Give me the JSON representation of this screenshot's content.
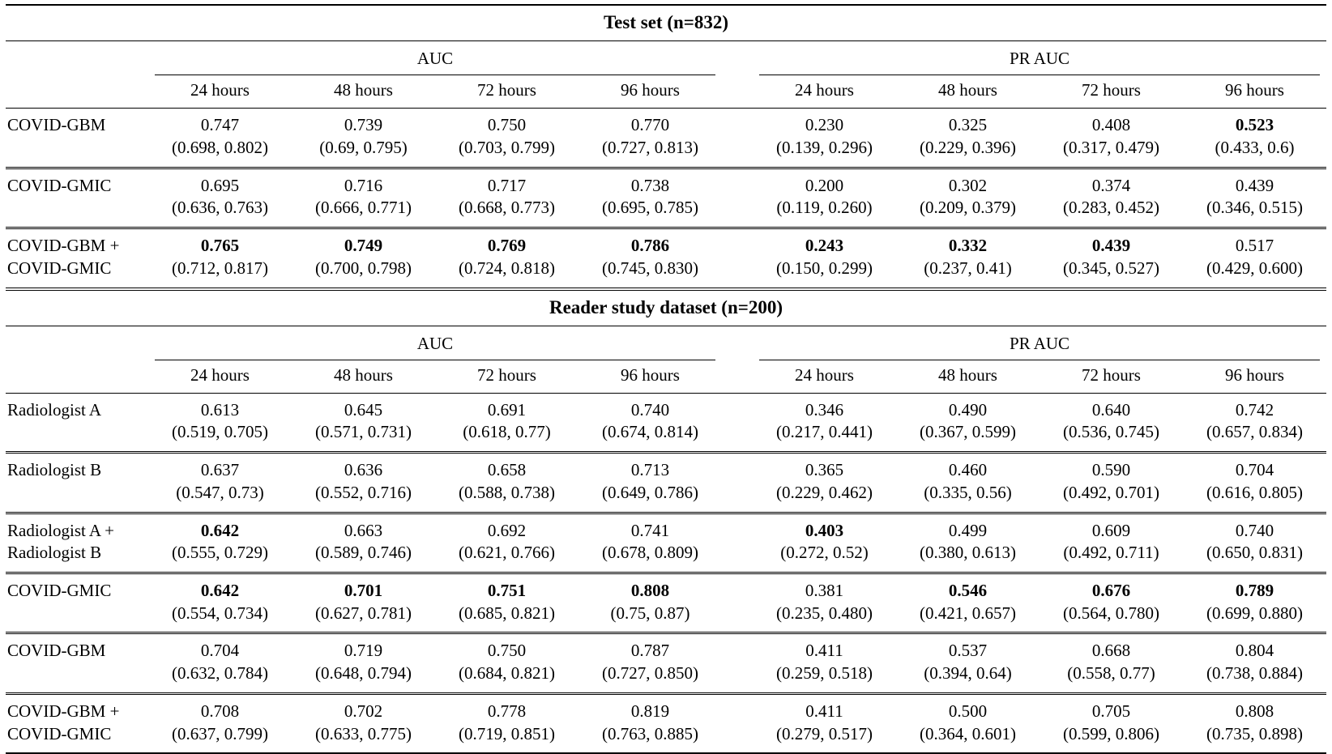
{
  "page": {
    "background": "#ffffff",
    "text_color": "#000000",
    "rule_color": "#000000"
  },
  "table": {
    "sections": [
      {
        "title": "Test set (n=832)",
        "column_groups": [
          {
            "label": "AUC",
            "columns": [
              "24 hours",
              "48 hours",
              "72 hours",
              "96 hours"
            ]
          },
          {
            "label": "PR AUC",
            "columns": [
              "24 hours",
              "48 hours",
              "72 hours",
              "96 hours"
            ]
          }
        ],
        "rows": [
          {
            "label": "COVID-GBM",
            "cells": [
              {
                "value": "0.747",
                "ci": "(0.698, 0.802)",
                "bold": false
              },
              {
                "value": "0.739",
                "ci": "(0.69, 0.795)",
                "bold": false
              },
              {
                "value": "0.750",
                "ci": "(0.703, 0.799)",
                "bold": false
              },
              {
                "value": "0.770",
                "ci": "(0.727, 0.813)",
                "bold": false
              },
              {
                "value": "0.230",
                "ci": "(0.139, 0.296)",
                "bold": false
              },
              {
                "value": "0.325",
                "ci": "(0.229, 0.396)",
                "bold": false
              },
              {
                "value": "0.408",
                "ci": "(0.317, 0.479)",
                "bold": false
              },
              {
                "value": "0.523",
                "ci": "(0.433, 0.6)",
                "bold": true
              }
            ]
          },
          {
            "label": "COVID-GMIC",
            "cells": [
              {
                "value": "0.695",
                "ci": "(0.636, 0.763)",
                "bold": false
              },
              {
                "value": "0.716",
                "ci": "(0.666, 0.771)",
                "bold": false
              },
              {
                "value": "0.717",
                "ci": "(0.668, 0.773)",
                "bold": false
              },
              {
                "value": "0.738",
                "ci": "(0.695, 0.785)",
                "bold": false
              },
              {
                "value": "0.200",
                "ci": "(0.119, 0.260)",
                "bold": false
              },
              {
                "value": "0.302",
                "ci": "(0.209, 0.379)",
                "bold": false
              },
              {
                "value": "0.374",
                "ci": "(0.283, 0.452)",
                "bold": false
              },
              {
                "value": "0.439",
                "ci": "(0.346, 0.515)",
                "bold": false
              }
            ]
          },
          {
            "label": "COVID-GBM +\nCOVID-GMIC",
            "cells": [
              {
                "value": "0.765",
                "ci": "(0.712, 0.817)",
                "bold": true
              },
              {
                "value": "0.749",
                "ci": "(0.700, 0.798)",
                "bold": true
              },
              {
                "value": "0.769",
                "ci": "(0.724, 0.818)",
                "bold": true
              },
              {
                "value": "0.786",
                "ci": "(0.745, 0.830)",
                "bold": true
              },
              {
                "value": "0.243",
                "ci": "(0.150, 0.299)",
                "bold": true
              },
              {
                "value": "0.332",
                "ci": "(0.237, 0.41)",
                "bold": true
              },
              {
                "value": "0.439",
                "ci": "(0.345, 0.527)",
                "bold": true
              },
              {
                "value": "0.517",
                "ci": "(0.429, 0.600)",
                "bold": false
              }
            ]
          }
        ]
      },
      {
        "title": "Reader study dataset (n=200)",
        "column_groups": [
          {
            "label": "AUC",
            "columns": [
              "24 hours",
              "48 hours",
              "72 hours",
              "96 hours"
            ]
          },
          {
            "label": "PR AUC",
            "columns": [
              "24 hours",
              "48 hours",
              "72 hours",
              "96 hours"
            ]
          }
        ],
        "rows": [
          {
            "label": "Radiologist A",
            "cells": [
              {
                "value": "0.613",
                "ci": "(0.519, 0.705)",
                "bold": false
              },
              {
                "value": "0.645",
                "ci": "(0.571, 0.731)",
                "bold": false
              },
              {
                "value": "0.691",
                "ci": "(0.618, 0.77)",
                "bold": false
              },
              {
                "value": "0.740",
                "ci": "(0.674, 0.814)",
                "bold": false
              },
              {
                "value": "0.346",
                "ci": "(0.217, 0.441)",
                "bold": false
              },
              {
                "value": "0.490",
                "ci": "(0.367, 0.599)",
                "bold": false
              },
              {
                "value": "0.640",
                "ci": "(0.536, 0.745)",
                "bold": false
              },
              {
                "value": "0.742",
                "ci": "(0.657, 0.834)",
                "bold": false
              }
            ]
          },
          {
            "label": "Radiologist B",
            "cells": [
              {
                "value": "0.637",
                "ci": "(0.547, 0.73)",
                "bold": false
              },
              {
                "value": "0.636",
                "ci": "(0.552, 0.716)",
                "bold": false
              },
              {
                "value": "0.658",
                "ci": "(0.588, 0.738)",
                "bold": false
              },
              {
                "value": "0.713",
                "ci": "(0.649, 0.786)",
                "bold": false
              },
              {
                "value": "0.365",
                "ci": "(0.229, 0.462)",
                "bold": false
              },
              {
                "value": "0.460",
                "ci": "(0.335, 0.56)",
                "bold": false
              },
              {
                "value": "0.590",
                "ci": "(0.492, 0.701)",
                "bold": false
              },
              {
                "value": "0.704",
                "ci": "(0.616, 0.805)",
                "bold": false
              }
            ]
          },
          {
            "label": "Radiologist A +\nRadiologist B",
            "cells": [
              {
                "value": "0.642",
                "ci": "(0.555, 0.729)",
                "bold": true
              },
              {
                "value": "0.663",
                "ci": "(0.589, 0.746)",
                "bold": false
              },
              {
                "value": "0.692",
                "ci": "(0.621, 0.766)",
                "bold": false
              },
              {
                "value": "0.741",
                "ci": "(0.678, 0.809)",
                "bold": false
              },
              {
                "value": "0.403",
                "ci": "(0.272, 0.52)",
                "bold": true
              },
              {
                "value": "0.499",
                "ci": "(0.380, 0.613)",
                "bold": false
              },
              {
                "value": "0.609",
                "ci": "(0.492, 0.711)",
                "bold": false
              },
              {
                "value": "0.740",
                "ci": "(0.650, 0.831)",
                "bold": false
              }
            ]
          },
          {
            "label": "COVID-GMIC",
            "cells": [
              {
                "value": "0.642",
                "ci": "(0.554, 0.734)",
                "bold": true
              },
              {
                "value": "0.701",
                "ci": "(0.627, 0.781)",
                "bold": true
              },
              {
                "value": "0.751",
                "ci": "(0.685, 0.821)",
                "bold": true
              },
              {
                "value": "0.808",
                "ci": "(0.75, 0.87)",
                "bold": true
              },
              {
                "value": "0.381",
                "ci": "(0.235, 0.480)",
                "bold": false
              },
              {
                "value": "0.546",
                "ci": "(0.421, 0.657)",
                "bold": true
              },
              {
                "value": "0.676",
                "ci": "(0.564, 0.780)",
                "bold": true
              },
              {
                "value": "0.789",
                "ci": "(0.699, 0.880)",
                "bold": true
              }
            ]
          },
          {
            "label": "COVID-GBM",
            "cells": [
              {
                "value": "0.704",
                "ci": "(0.632, 0.784)",
                "bold": false
              },
              {
                "value": "0.719",
                "ci": "(0.648, 0.794)",
                "bold": false
              },
              {
                "value": "0.750",
                "ci": "(0.684, 0.821)",
                "bold": false
              },
              {
                "value": "0.787",
                "ci": "(0.727, 0.850)",
                "bold": false
              },
              {
                "value": "0.411",
                "ci": "(0.259, 0.518)",
                "bold": false
              },
              {
                "value": "0.537",
                "ci": "(0.394, 0.64)",
                "bold": false
              },
              {
                "value": "0.668",
                "ci": "(0.558, 0.77)",
                "bold": false
              },
              {
                "value": "0.804",
                "ci": "(0.738, 0.884)",
                "bold": false
              }
            ]
          },
          {
            "label": "COVID-GBM +\nCOVID-GMIC",
            "cells": [
              {
                "value": "0.708",
                "ci": "(0.637, 0.799)",
                "bold": false
              },
              {
                "value": "0.702",
                "ci": "(0.633, 0.775)",
                "bold": false
              },
              {
                "value": "0.778",
                "ci": "(0.719, 0.851)",
                "bold": false
              },
              {
                "value": "0.819",
                "ci": "(0.763, 0.885)",
                "bold": false
              },
              {
                "value": "0.411",
                "ci": "(0.279, 0.517)",
                "bold": false
              },
              {
                "value": "0.500",
                "ci": "(0.364, 0.601)",
                "bold": false
              },
              {
                "value": "0.705",
                "ci": "(0.599, 0.806)",
                "bold": false
              },
              {
                "value": "0.808",
                "ci": "(0.735, 0.898)",
                "bold": false
              }
            ]
          }
        ]
      }
    ]
  }
}
